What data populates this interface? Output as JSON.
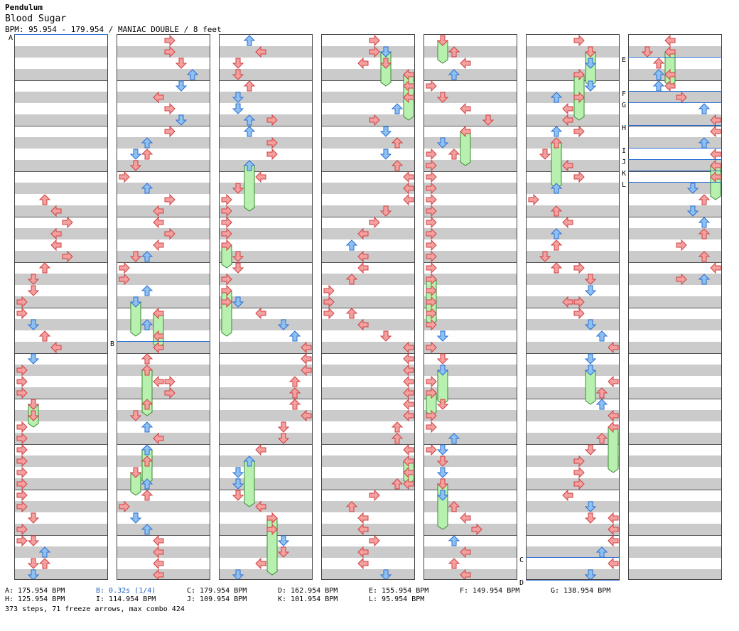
{
  "song": {
    "artist": "Pendulum",
    "title": "Blood Sugar",
    "info": "BPM: 95.954 - 179.954 / MANIAC DOUBLE / 8 feet"
  },
  "markers": [
    "A",
    "B",
    "C",
    "D",
    "E",
    "F",
    "G",
    "H",
    "I",
    "J",
    "K",
    "L"
  ],
  "legend": [
    {
      "text": "A: 175.954 BPM",
      "color": "#000000"
    },
    {
      "text": "B: 0.32s (1/4)",
      "color": "#1e5fbf"
    },
    {
      "text": "C: 179.954 BPM",
      "color": "#000000"
    },
    {
      "text": "D: 162.954 BPM",
      "color": "#000000"
    },
    {
      "text": "E: 155.954 BPM",
      "color": "#000000"
    },
    {
      "text": "F: 149.954 BPM",
      "color": "#000000"
    },
    {
      "text": "G: 138.954 BPM",
      "color": "#000000"
    },
    {
      "text": "H: 125.954 BPM",
      "color": "#000000"
    },
    {
      "text": "I: 114.954 BPM",
      "color": "#000000"
    },
    {
      "text": "J: 109.954 BPM",
      "color": "#000000"
    },
    {
      "text": "K: 101.954 BPM",
      "color": "#000000"
    },
    {
      "text": "L: 95.954 BPM",
      "color": "#000000"
    }
  ],
  "stats": "373 steps, 71 freeze arrows, max combo 424",
  "colors": {
    "red_arrow": "#f4a0a0",
    "blue_arrow": "#8ec0f0",
    "freeze": "#b8f0b0",
    "stripe": "#cbcbcb",
    "bpm_line": "#2a6fd6"
  }
}
